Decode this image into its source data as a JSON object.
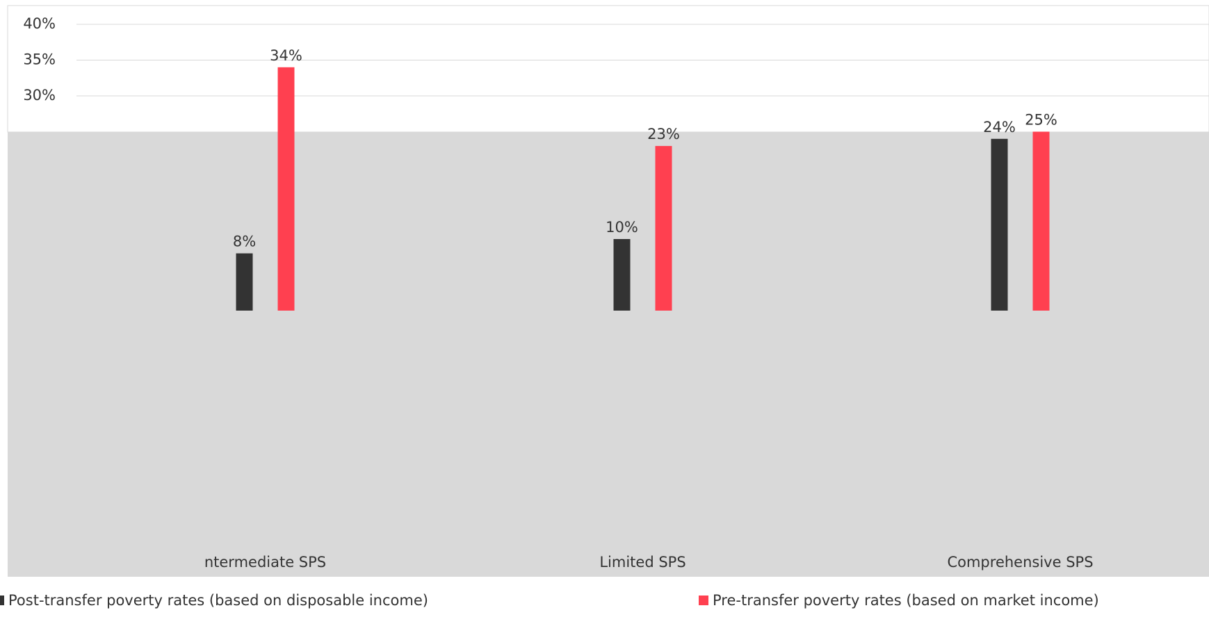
{
  "chart_data": {
    "type": "bar",
    "categories": [
      "ntermediate SPS",
      "Limited SPS",
      "Comprehensive SPS"
    ],
    "series": [
      {
        "name": "Post-transfer poverty rates (based on disposable income)",
        "color": "#333333",
        "values": [
          8,
          10,
          24
        ],
        "value_labels": [
          "8%",
          "10%",
          "24%"
        ]
      },
      {
        "name": "Pre-transfer poverty rates (based on market income)",
        "color": "#ff4050",
        "values": [
          34,
          23,
          25
        ],
        "value_labels": [
          "34%",
          "23%",
          "25%"
        ]
      }
    ],
    "ylim": [
      0,
      40
    ],
    "yticks": [
      {
        "value": 30,
        "label": "30%"
      },
      {
        "value": 35,
        "label": "35%"
      },
      {
        "value": 40,
        "label": "40%"
      }
    ],
    "grid": true
  }
}
